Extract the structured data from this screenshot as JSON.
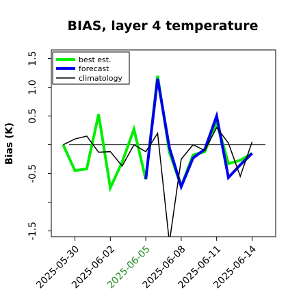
{
  "chart_data": {
    "type": "line",
    "title": "BIAS, layer 4 temperature",
    "ylabel": "Bias (K)",
    "xlabel": "",
    "ylim": [
      -1.6,
      1.65
    ],
    "y_ticks": [
      -1.5,
      -1.0,
      -0.5,
      0.0,
      0.5,
      1.0,
      1.5
    ],
    "y_tick_labels": [
      "-1.5",
      "",
      "-0.5",
      "",
      "0.5",
      "1.0",
      "1.5"
    ],
    "x_range": [
      "2025-05-28",
      "2025-06-16"
    ],
    "x_ticks": [
      "2025-05-30",
      "2025-06-02",
      "2025-06-05",
      "2025-06-08",
      "2025-06-11",
      "2025-06-14"
    ],
    "x_tick_labels": [
      "2025-05-30",
      "2025-06-02",
      "2025-06-05",
      "2025-06-08",
      "2025-06-11",
      "2025-06-14"
    ],
    "x_tick_colors": [
      "#000000",
      "#000000",
      "#228b22",
      "#000000",
      "#000000",
      "#000000"
    ],
    "zero_line": true,
    "grid": false,
    "legend_position": "top-left",
    "series": [
      {
        "name": "best est.",
        "color": "#00ee00",
        "x": [
          "2025-05-29",
          "2025-05-30",
          "2025-05-31",
          "2025-06-01",
          "2025-06-02",
          "2025-06-03",
          "2025-06-04",
          "2025-06-05",
          "2025-06-06",
          "2025-06-07",
          "2025-06-08",
          "2025-06-09",
          "2025-06-10",
          "2025-06-11",
          "2025-06-12",
          "2025-06-13",
          "2025-06-14"
        ],
        "values": [
          0.0,
          -0.45,
          -0.42,
          0.53,
          -0.75,
          -0.3,
          0.27,
          -0.6,
          1.2,
          -0.13,
          -0.72,
          -0.18,
          -0.12,
          0.4,
          -0.33,
          -0.27,
          -0.15
        ]
      },
      {
        "name": "forecast",
        "color": "#0000ee",
        "x": [
          "2025-06-05",
          "2025-06-06",
          "2025-06-07",
          "2025-06-08",
          "2025-06-09",
          "2025-06-10",
          "2025-06-11",
          "2025-06-12",
          "2025-06-13",
          "2025-06-14"
        ],
        "values": [
          -0.6,
          1.15,
          -0.05,
          -0.73,
          -0.23,
          -0.08,
          0.5,
          -0.57,
          -0.35,
          -0.15
        ]
      },
      {
        "name": "climatology",
        "color": "#000000",
        "x": [
          "2025-05-29",
          "2025-05-30",
          "2025-05-31",
          "2025-06-01",
          "2025-06-02",
          "2025-06-03",
          "2025-06-04",
          "2025-06-05",
          "2025-06-06",
          "2025-06-07",
          "2025-06-08",
          "2025-06-09",
          "2025-06-10",
          "2025-06-11",
          "2025-06-12",
          "2025-06-13",
          "2025-06-14"
        ],
        "values": [
          0.0,
          0.1,
          0.15,
          -0.13,
          -0.12,
          -0.37,
          0.0,
          -0.12,
          0.2,
          -1.7,
          -0.25,
          0.0,
          -0.1,
          0.3,
          0.03,
          -0.55,
          0.05
        ]
      }
    ]
  }
}
